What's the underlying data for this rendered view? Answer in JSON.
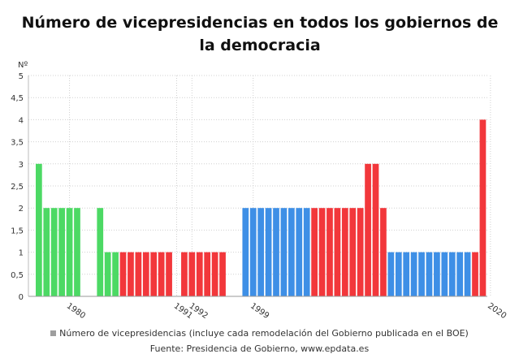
{
  "chart_data": {
    "type": "bar",
    "title": "Número de vicepresidencias en todos los gobiernos de la democracia",
    "ylabel": "Nº",
    "xlabel": "",
    "ylim": [
      0,
      5
    ],
    "yticks": [
      "0",
      "0,5",
      "1",
      "1,5",
      "2",
      "2,5",
      "3",
      "3,5",
      "4",
      "4,5",
      "5"
    ],
    "xticks": [
      {
        "label": "1980",
        "index": 4
      },
      {
        "label": "1991",
        "index": 18
      },
      {
        "label": "1992",
        "index": 20
      },
      {
        "label": "1999",
        "index": 28
      },
      {
        "label": "2020",
        "index": 59
      }
    ],
    "grid": true,
    "legend": "bottom",
    "colors": {
      "green": "#4cd964",
      "red": "#f2373b",
      "blue": "#3e8fe6"
    },
    "values": [
      3,
      2,
      2,
      2,
      2,
      2,
      null,
      null,
      2,
      1,
      1,
      1,
      1,
      1,
      1,
      1,
      1,
      1,
      null,
      1,
      1,
      1,
      1,
      1,
      1,
      null,
      null,
      2,
      2,
      2,
      2,
      2,
      2,
      2,
      2,
      2,
      2,
      2,
      2,
      2,
      2,
      2,
      2,
      3,
      3,
      2,
      1,
      1,
      1,
      1,
      1,
      1,
      1,
      1,
      1,
      1,
      1,
      1,
      4
    ],
    "bar_colors": [
      "green",
      "green",
      "green",
      "green",
      "green",
      "green",
      null,
      null,
      "green",
      "green",
      "green",
      "red",
      "red",
      "red",
      "red",
      "red",
      "red",
      "red",
      null,
      "red",
      "red",
      "red",
      "red",
      "red",
      "red",
      null,
      null,
      "blue",
      "blue",
      "blue",
      "blue",
      "blue",
      "blue",
      "blue",
      "blue",
      "blue",
      "red",
      "red",
      "red",
      "red",
      "red",
      "red",
      "red",
      "red",
      "red",
      "red",
      "blue",
      "blue",
      "blue",
      "blue",
      "blue",
      "blue",
      "blue",
      "blue",
      "blue",
      "blue",
      "blue",
      "red",
      "red"
    ]
  },
  "legend": {
    "label": "Número de vicepresidencias (incluye cada remodelación del Gobierno publicada en el BOE)"
  },
  "source": "Fuente: Presidencia de Gobierno, www.epdata.es"
}
